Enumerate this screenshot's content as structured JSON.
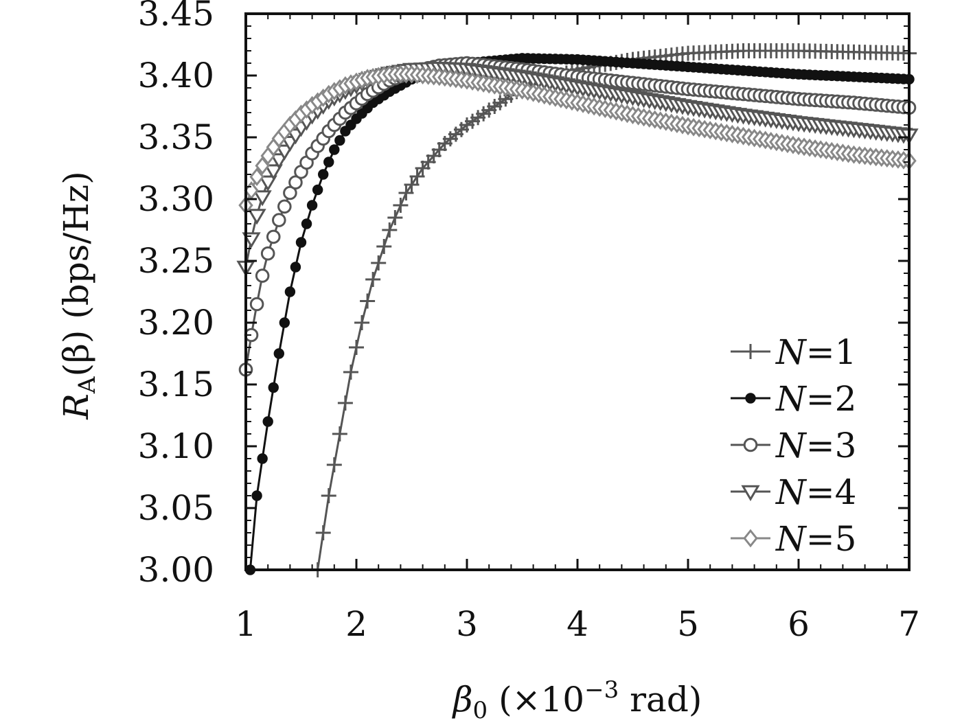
{
  "chart_data": {
    "type": "line",
    "xlabel": {
      "main": "β",
      "sub": "0",
      "rest_pre": " (×10",
      "sup": "−3",
      "rest_post": " rad)"
    },
    "ylabel": {
      "main": "R",
      "sub": "A",
      "rest": "(β) (bps/Hz)"
    },
    "xlim": [
      1,
      7
    ],
    "ylim": [
      3.0,
      3.45
    ],
    "x_ticks": [
      1,
      2,
      3,
      4,
      5,
      6,
      7
    ],
    "x_tick_labels": [
      "1",
      "2",
      "3",
      "4",
      "5",
      "6",
      "7"
    ],
    "y_ticks": [
      3.0,
      3.05,
      3.1,
      3.15,
      3.2,
      3.25,
      3.3,
      3.35,
      3.4,
      3.45
    ],
    "y_tick_labels": [
      "3.00",
      "3.05",
      "3.10",
      "3.15",
      "3.20",
      "3.25",
      "3.30",
      "3.35",
      "3.40",
      "3.45"
    ],
    "grid": false,
    "legend_position": "bottom-right",
    "series": [
      {
        "name": "N=1",
        "legend_italic": "N",
        "legend_rest": "=1",
        "marker": "plus",
        "color": "#555555",
        "x": [
          1.65,
          1.75,
          1.85,
          1.95,
          2.05,
          2.15,
          2.3,
          2.45,
          2.6,
          2.8,
          3.0,
          3.25,
          3.5,
          4.0,
          4.5,
          5.0,
          5.5,
          6.0,
          6.5,
          7.0
        ],
        "y": [
          3.0,
          3.06,
          3.11,
          3.16,
          3.2,
          3.235,
          3.275,
          3.305,
          3.325,
          3.345,
          3.36,
          3.375,
          3.39,
          3.405,
          3.413,
          3.418,
          3.42,
          3.42,
          3.419,
          3.418
        ]
      },
      {
        "name": "N=2",
        "legend_italic": "N",
        "legend_rest": "=2",
        "marker": "filled-circle",
        "color": "#111111",
        "x": [
          1.04,
          1.1,
          1.2,
          1.3,
          1.4,
          1.5,
          1.6,
          1.7,
          1.8,
          1.9,
          2.0,
          2.15,
          2.3,
          2.5,
          2.75,
          3.0,
          3.5,
          4.0,
          4.5,
          5.0,
          5.5,
          6.0,
          6.5,
          7.0
        ],
        "y": [
          3.0,
          3.06,
          3.12,
          3.175,
          3.225,
          3.265,
          3.295,
          3.32,
          3.34,
          3.355,
          3.365,
          3.378,
          3.387,
          3.397,
          3.405,
          3.41,
          3.414,
          3.413,
          3.41,
          3.407,
          3.404,
          3.401,
          3.399,
          3.397
        ]
      },
      {
        "name": "N=3",
        "legend_italic": "N",
        "legend_rest": "=3",
        "marker": "open-circle",
        "color": "#555555",
        "x": [
          1.0,
          1.05,
          1.1,
          1.15,
          1.2,
          1.3,
          1.4,
          1.5,
          1.6,
          1.75,
          1.9,
          2.1,
          2.3,
          2.5,
          2.75,
          3.0,
          3.5,
          4.0,
          4.5,
          5.0,
          5.5,
          6.0,
          6.5,
          7.0
        ],
        "y": [
          3.162,
          3.19,
          3.215,
          3.238,
          3.256,
          3.283,
          3.305,
          3.322,
          3.337,
          3.355,
          3.37,
          3.385,
          3.396,
          3.403,
          3.408,
          3.41,
          3.405,
          3.399,
          3.394,
          3.389,
          3.385,
          3.381,
          3.378,
          3.374
        ]
      },
      {
        "name": "N=4",
        "legend_italic": "N",
        "legend_rest": "=4",
        "marker": "down-triangle",
        "color": "#555555",
        "x": [
          1.0,
          1.05,
          1.1,
          1.15,
          1.2,
          1.3,
          1.4,
          1.5,
          1.6,
          1.75,
          1.9,
          2.1,
          2.3,
          2.5,
          2.75,
          3.0,
          3.5,
          4.0,
          4.5,
          5.0,
          5.5,
          6.0,
          6.5,
          7.0
        ],
        "y": [
          3.245,
          3.268,
          3.287,
          3.302,
          3.314,
          3.332,
          3.346,
          3.358,
          3.368,
          3.38,
          3.388,
          3.397,
          3.402,
          3.405,
          3.406,
          3.405,
          3.399,
          3.391,
          3.383,
          3.375,
          3.368,
          3.362,
          3.357,
          3.352
        ]
      },
      {
        "name": "N=5",
        "legend_italic": "N",
        "legend_rest": "=5",
        "marker": "diamond",
        "color": "#888888",
        "x": [
          1.0,
          1.05,
          1.1,
          1.15,
          1.2,
          1.3,
          1.4,
          1.5,
          1.6,
          1.75,
          1.9,
          2.1,
          2.3,
          2.5,
          2.75,
          3.0,
          3.5,
          4.0,
          4.5,
          5.0,
          5.5,
          6.0,
          6.5,
          7.0
        ],
        "y": [
          3.295,
          3.307,
          3.318,
          3.327,
          3.335,
          3.349,
          3.36,
          3.369,
          3.376,
          3.385,
          3.392,
          3.398,
          3.401,
          3.401,
          3.399,
          3.396,
          3.388,
          3.378,
          3.368,
          3.359,
          3.351,
          3.343,
          3.336,
          3.331
        ]
      }
    ]
  }
}
